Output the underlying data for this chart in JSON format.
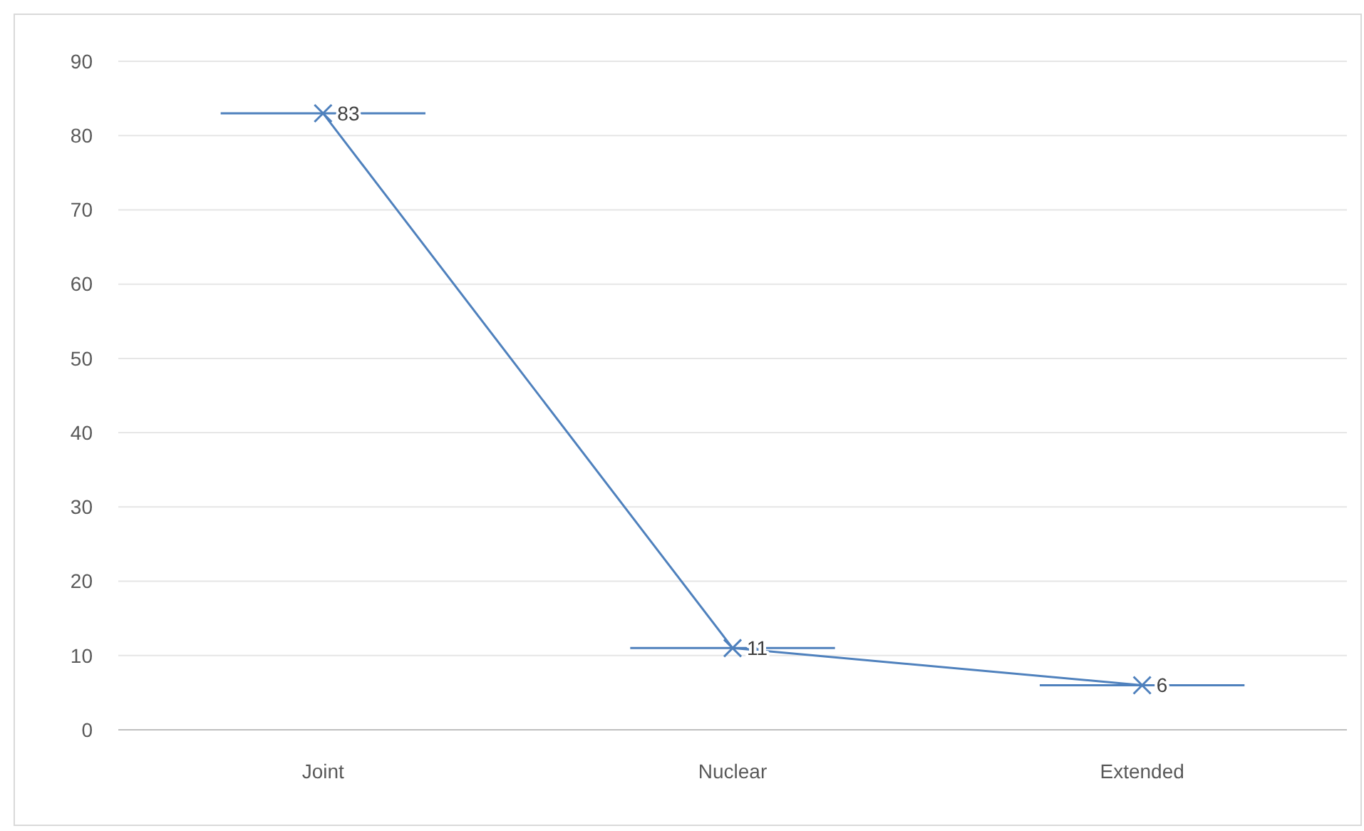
{
  "chart_data": {
    "type": "line",
    "categories": [
      "Joint",
      "Nuclear",
      "Extended"
    ],
    "values": [
      83,
      11,
      6
    ],
    "color": "#4f81bd",
    "marker": "cross",
    "ylim": [
      0,
      90
    ],
    "yticks": [
      0,
      10,
      20,
      30,
      40,
      50,
      60,
      70,
      80,
      90
    ],
    "grid": "y",
    "data_labels": true
  }
}
